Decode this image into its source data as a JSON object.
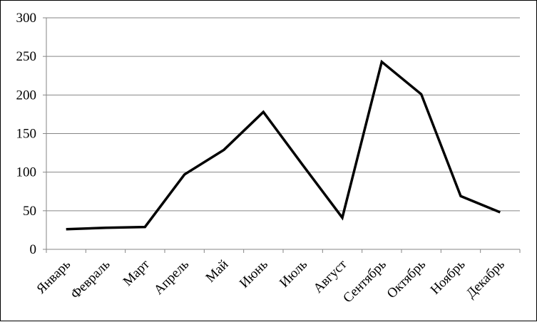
{
  "chart_data": {
    "type": "line",
    "title": "",
    "xlabel": "",
    "ylabel": "",
    "categories": [
      "Январь",
      "Февраль",
      "Март",
      "Апрель",
      "Май",
      "Июнь",
      "Июль",
      "Август",
      "Сентябрь",
      "Октябрь",
      "Ноябрь",
      "Декабрь"
    ],
    "series": [
      {
        "values": [
          26,
          28,
          29,
          97,
          129,
          178,
          109,
          41,
          243,
          201,
          69,
          48
        ]
      }
    ],
    "ylim": [
      0,
      300
    ],
    "yticks": [
      0,
      50,
      100,
      150,
      200,
      250,
      300
    ],
    "grid": true,
    "legend": "none",
    "colors": {
      "line": "#000000",
      "grid": "#868686",
      "axis": "#868686",
      "frame": "#000000"
    }
  }
}
